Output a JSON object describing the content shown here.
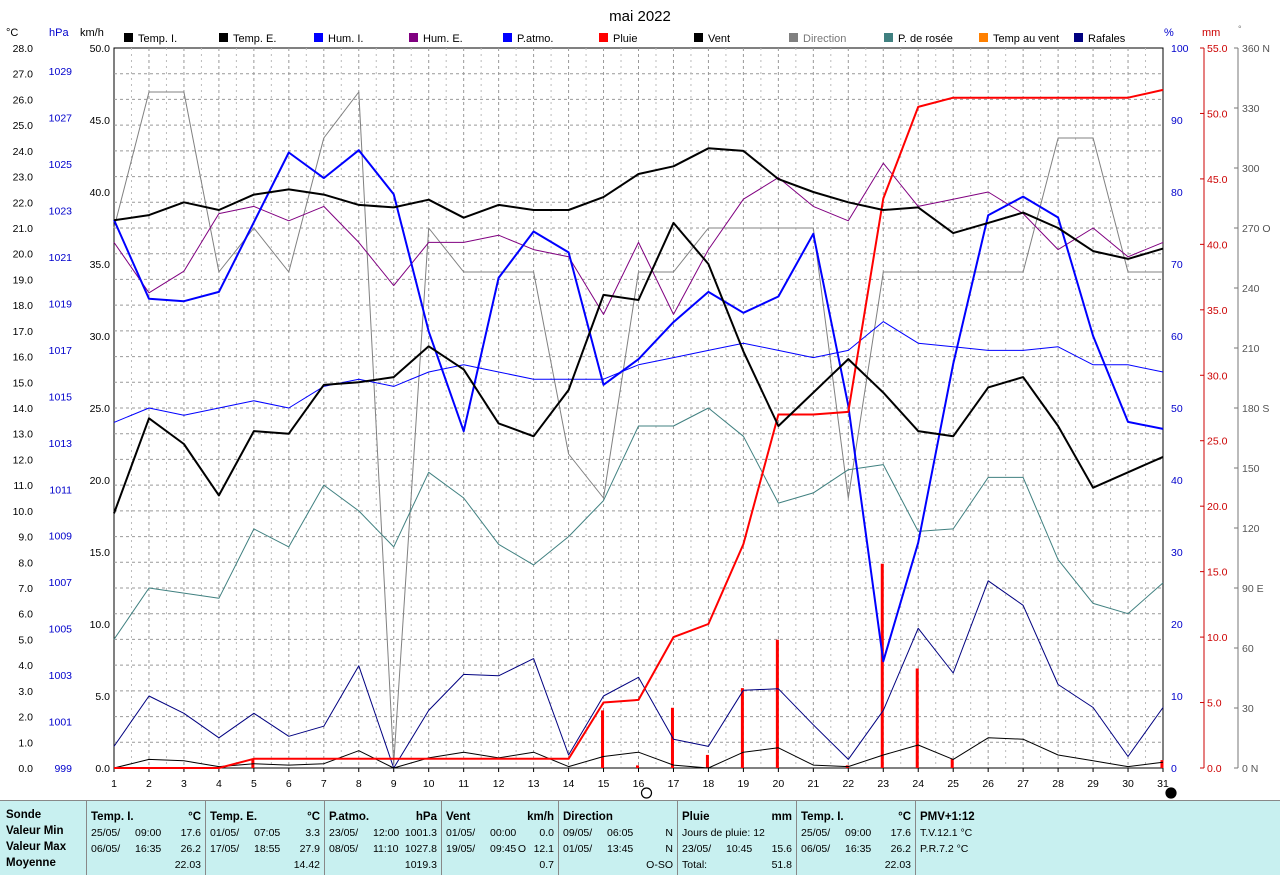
{
  "chart_data": {
    "type": "line",
    "title": "mai 2022",
    "axes": {
      "temp": {
        "unit": "°C",
        "range": [
          0,
          28
        ],
        "ticks": [
          "0.0",
          "1.0",
          "2.0",
          "3.0",
          "4.0",
          "5.0",
          "6.0",
          "7.0",
          "8.0",
          "9.0",
          "10.0",
          "11.0",
          "12.0",
          "13.0",
          "14.0",
          "15.0",
          "16.0",
          "17.0",
          "18.0",
          "19.0",
          "20.0",
          "21.0",
          "22.0",
          "23.0",
          "24.0",
          "25.0",
          "26.0",
          "27.0",
          "28.0"
        ]
      },
      "pressure": {
        "unit": "hPa",
        "range": [
          999,
          1030
        ],
        "ticks": [
          "999",
          "1001",
          "1003",
          "1005",
          "1007",
          "1009",
          "1011",
          "1013",
          "1015",
          "1017",
          "1019",
          "1021",
          "1023",
          "1025",
          "1027",
          "1029"
        ]
      },
      "wind": {
        "unit": "km/h",
        "range": [
          0,
          50
        ],
        "ticks": [
          "0.0",
          "5.0",
          "10.0",
          "15.0",
          "20.0",
          "25.0",
          "30.0",
          "35.0",
          "40.0",
          "45.0",
          "50.0"
        ]
      },
      "humidity": {
        "unit": "%",
        "range": [
          0,
          100
        ],
        "ticks": [
          "0",
          "10",
          "20",
          "30",
          "40",
          "50",
          "60",
          "70",
          "80",
          "90",
          "100"
        ]
      },
      "rain": {
        "unit": "mm",
        "range": [
          0,
          55
        ],
        "ticks": [
          "0.0",
          "5.0",
          "10.0",
          "15.0",
          "20.0",
          "25.0",
          "30.0",
          "35.0",
          "40.0",
          "45.0",
          "50.0",
          "55.0"
        ]
      },
      "direction": {
        "unit": "°",
        "range": [
          0,
          360
        ],
        "ticks": [
          "0 N",
          "30",
          "60",
          "90 E",
          "120",
          "150",
          "180 S",
          "210",
          "240",
          "270 O",
          "300",
          "330",
          "360 N"
        ]
      }
    },
    "days": [
      1,
      2,
      3,
      4,
      5,
      6,
      7,
      8,
      9,
      10,
      11,
      12,
      13,
      14,
      15,
      16,
      17,
      18,
      19,
      20,
      21,
      22,
      23,
      24,
      25,
      26,
      27,
      28,
      29,
      30,
      31
    ],
    "legend": [
      {
        "name": "Temp. I.",
        "color": "#000000"
      },
      {
        "name": "Temp. E.",
        "color": "#000000"
      },
      {
        "name": "Hum. I.",
        "color": "#0000ff"
      },
      {
        "name": "Hum. E.",
        "color": "#800080"
      },
      {
        "name": "P.atmo.",
        "color": "#0000ff"
      },
      {
        "name": "Pluie",
        "color": "#ff0000"
      },
      {
        "name": "Vent",
        "color": "#000000"
      },
      {
        "name": "Direction",
        "color": "#808080"
      },
      {
        "name": "P. de rosée",
        "color": "#408080"
      },
      {
        "name": "Temp au vent",
        "color": "#ff8000"
      },
      {
        "name": "Rafales",
        "color": "#000080"
      }
    ],
    "series": [
      {
        "name": "Temp. I.",
        "axis": "temp",
        "color": "#000000",
        "width": 2,
        "values": [
          21.3,
          21.5,
          22.0,
          21.7,
          22.3,
          22.5,
          22.3,
          21.9,
          21.8,
          22.1,
          21.4,
          21.9,
          21.7,
          21.7,
          22.2,
          23.1,
          23.4,
          24.1,
          24.0,
          22.9,
          22.4,
          22.0,
          21.7,
          21.8,
          20.8,
          21.2,
          21.6,
          21.0,
          20.1,
          19.8,
          20.2
        ]
      },
      {
        "name": "Temp. E.",
        "axis": "temp",
        "color": "#000000",
        "width": 2,
        "values": [
          9.9,
          13.6,
          12.6,
          10.6,
          13.1,
          13.0,
          14.9,
          15.0,
          15.2,
          16.4,
          15.5,
          13.4,
          12.9,
          14.7,
          18.4,
          18.2,
          21.2,
          19.6,
          16.2,
          13.3,
          14.6,
          15.9,
          14.6,
          13.1,
          12.9,
          14.8,
          15.2,
          13.3,
          10.9,
          11.5,
          12.1
        ]
      },
      {
        "name": "Hum. I.",
        "axis": "humidity",
        "color": "#800080",
        "width": 1,
        "values": [
          73,
          66,
          69,
          77,
          78,
          76,
          78,
          73,
          67,
          73,
          73,
          74,
          72,
          71,
          63,
          73,
          63,
          72,
          79,
          82,
          78,
          76,
          84,
          78,
          79,
          80,
          77,
          72,
          75,
          71,
          73
        ]
      },
      {
        "name": "Hum. E.",
        "axis": "humidity",
        "color": "#0000ff",
        "width": 1,
        "values": [
          48,
          50,
          49,
          50,
          51,
          50,
          53,
          54,
          53,
          55,
          56,
          55,
          54,
          54,
          54,
          56,
          57,
          58,
          59,
          58,
          57,
          58,
          62,
          59,
          58.5,
          58,
          58,
          58.5,
          56,
          56,
          55
        ]
      },
      {
        "name": "P.atmo.",
        "axis": "pressure",
        "color": "#0000ff",
        "width": 2,
        "values": [
          1022.6,
          1019.2,
          1019.1,
          1019.5,
          1022.5,
          1025.5,
          1024.4,
          1025.6,
          1023.7,
          1017.8,
          1013.5,
          1020.1,
          1022.1,
          1021.2,
          1015.5,
          1016.6,
          1018.2,
          1019.5,
          1018.6,
          1019.3,
          1022.0,
          1014.6,
          1003.6,
          1008.7,
          1016.4,
          1022.8,
          1023.6,
          1022.7,
          1017.6,
          1013.9,
          1013.6
        ]
      },
      {
        "name": "Pluie",
        "axis": "rain",
        "color": "#ff0000",
        "width": 2,
        "values": [
          0.0,
          0.0,
          0.0,
          0.0,
          0.7,
          0.7,
          0.7,
          0.7,
          0.7,
          0.7,
          0.7,
          0.7,
          0.7,
          0.7,
          5.0,
          5.2,
          10.0,
          11.0,
          17.1,
          27.0,
          27.0,
          27.2,
          43.5,
          50.5,
          51.2,
          51.2,
          51.2,
          51.2,
          51.2,
          51.2,
          51.8
        ]
      },
      {
        "name": "Vent",
        "axis": "wind",
        "color": "#000000",
        "width": 1,
        "values": [
          0.0,
          0.6,
          0.5,
          0.1,
          0.3,
          0.2,
          0.3,
          1.2,
          0.0,
          0.7,
          1.1,
          0.7,
          1.1,
          0.1,
          0.8,
          1.1,
          0.2,
          0.0,
          1.1,
          1.4,
          0.2,
          0.1,
          0.9,
          1.6,
          0.6,
          2.1,
          2.0,
          0.9,
          0.5,
          0.1,
          0.4
        ]
      },
      {
        "name": "Direction",
        "axis": "direction",
        "color": "#808080",
        "width": 1,
        "values": [
          270,
          338,
          338,
          248,
          270,
          248,
          315,
          338,
          2,
          270,
          248,
          248,
          248,
          157,
          135,
          248,
          248,
          270,
          270,
          270,
          270,
          135,
          248,
          248,
          248,
          248,
          248,
          315,
          315,
          248,
          248
        ]
      },
      {
        "name": "P. de rosée",
        "axis": "temp",
        "color": "#408080",
        "width": 1,
        "values": [
          5.0,
          7.0,
          6.8,
          6.6,
          9.3,
          8.6,
          11.0,
          10.0,
          8.6,
          11.5,
          10.5,
          8.7,
          7.9,
          9.0,
          10.4,
          13.3,
          13.3,
          14.0,
          12.9,
          10.3,
          10.7,
          11.6,
          11.8,
          9.2,
          9.3,
          11.3,
          11.3,
          8.1,
          6.4,
          6.0,
          7.2
        ]
      },
      {
        "name": "Rafales",
        "axis": "wind",
        "color": "#000080",
        "width": 1,
        "values": [
          1.5,
          5.0,
          3.8,
          2.1,
          3.8,
          2.2,
          2.9,
          7.1,
          0.0,
          4.0,
          6.5,
          6.4,
          7.6,
          0.9,
          5.0,
          6.3,
          2.0,
          1.5,
          5.4,
          5.5,
          3.0,
          0.6,
          4.0,
          9.7,
          6.6,
          13.0,
          11.3,
          5.8,
          4.2,
          0.8,
          4.2
        ]
      }
    ],
    "rain_daily": {
      "axis": "rain",
      "color": "#ff0000",
      "values": [
        0,
        0,
        0,
        0,
        0.7,
        0,
        0,
        0,
        0,
        0,
        0,
        0,
        0,
        0,
        4.4,
        0.2,
        4.6,
        1.0,
        6.1,
        9.8,
        0,
        0.2,
        15.6,
        7.6,
        0.7,
        0,
        0,
        0,
        0,
        0,
        0.6
      ]
    },
    "moon_phases": [
      {
        "day": 16,
        "phase": "full"
      },
      {
        "day": 31,
        "phase": "new"
      }
    ]
  },
  "stats": {
    "col0": {
      "title": "Sonde",
      "rows": [
        "Valeur Min",
        "Valeur Max",
        "Moyenne"
      ]
    },
    "temp_i": {
      "title": "Temp. I.",
      "unit": "°C",
      "min_date": "25/05/",
      "min_time": "09:00",
      "min_val": "17.6",
      "max_date": "06/05/",
      "max_time": "16:35",
      "max_val": "26.2",
      "avg": "22.03"
    },
    "temp_e": {
      "title": "Temp. E.",
      "unit": "°C",
      "min_date": "01/05/",
      "min_time": "07:05",
      "min_val": "3.3",
      "max_date": "17/05/",
      "max_time": "18:55",
      "max_val": "27.9",
      "avg": "14.42"
    },
    "patmo": {
      "title": "P.atmo.",
      "unit": "hPa",
      "min_date": "23/05/",
      "min_time": "12:00",
      "min_val": "1001.3",
      "max_date": "08/05/",
      "max_time": "11:10",
      "max_val": "1027.8",
      "avg": "1019.3"
    },
    "vent": {
      "title": "Vent",
      "unit": "km/h",
      "min_date": "01/05/",
      "min_time": "00:00",
      "min_val": "0.0",
      "max_date": "19/05/",
      "max_time": "09:45",
      "max_dir": "O",
      "max_val": "12.1",
      "avg": "0.7"
    },
    "direction": {
      "title": "Direction",
      "min_date": "09/05/",
      "min_time": "06:05",
      "min_val": "N",
      "max_date": "01/05/",
      "max_time": "13:45",
      "max_val": "N",
      "avg": "O-SO"
    },
    "pluie": {
      "title": "Pluie",
      "unit": "mm",
      "row1": "Jours de pluie: 12",
      "max_date": "23/05/",
      "max_time": "10:45",
      "max_val": "15.6",
      "total_label": "Total:",
      "total_val": "51.8"
    },
    "temp_i2": {
      "title": "Temp. I.",
      "unit": "°C",
      "min_date": "25/05/",
      "min_time": "09:00",
      "min_val": "17.6",
      "max_date": "06/05/",
      "max_time": "16:35",
      "max_val": "26.2",
      "avg": "22.03"
    },
    "pmv": {
      "title": "PMV+1:12",
      "tv": "T.V.12.1 °C",
      "pr": "P.R.7.2 °C"
    }
  }
}
